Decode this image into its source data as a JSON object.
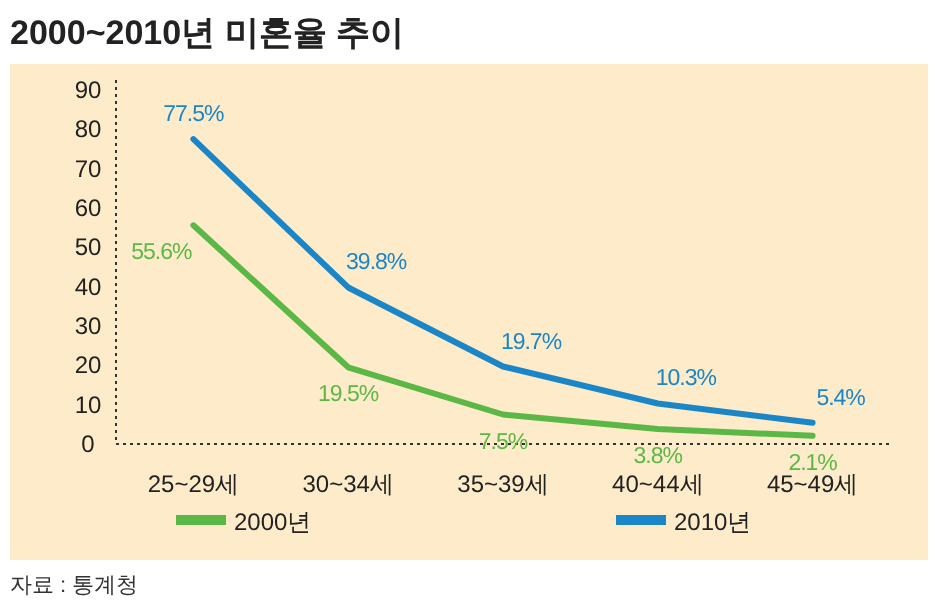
{
  "chart_data": {
    "type": "line",
    "title": "2000~2010년 미혼율 추이",
    "categories": [
      "25~29세",
      "30~34세",
      "35~39세",
      "40~44세",
      "45~49세"
    ],
    "series": [
      {
        "name": "2000년",
        "color": "#5cb846",
        "values": [
          55.6,
          19.5,
          7.5,
          3.8,
          2.1
        ],
        "value_labels": [
          "55.6%",
          "19.5%",
          "7.5%",
          "3.8%",
          "2.1%"
        ]
      },
      {
        "name": "2010년",
        "color": "#1a86c8",
        "values": [
          77.5,
          39.8,
          19.7,
          10.3,
          5.4
        ],
        "value_labels": [
          "77.5%",
          "39.8%",
          "19.7%",
          "10.3%",
          "5.4%"
        ]
      }
    ],
    "ylim": [
      0,
      90
    ],
    "yticks": [
      0,
      10,
      20,
      30,
      40,
      50,
      60,
      70,
      80,
      90
    ],
    "grid": false,
    "legend": "bottom",
    "marker": "none",
    "line_style": "solid",
    "annotations": [
      "자료 : 통계청"
    ]
  }
}
